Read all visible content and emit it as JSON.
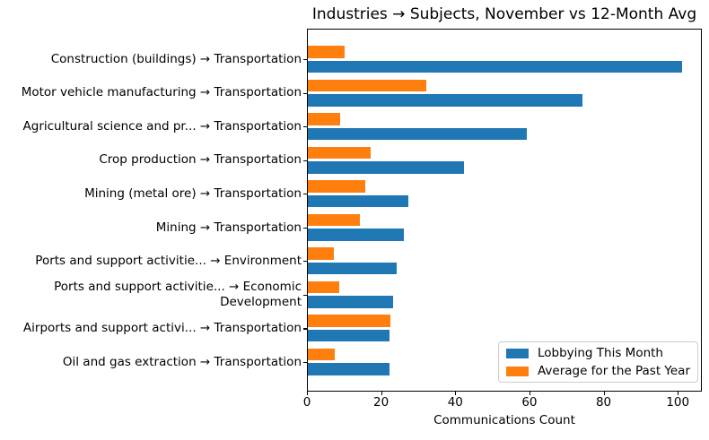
{
  "chart_data": {
    "type": "bar",
    "orientation": "horizontal",
    "title": "Industries → Subjects, November vs 12-Month Avg",
    "xlabel": "Communications Count",
    "ylabel": "",
    "xlim": [
      0,
      106
    ],
    "xticks": [
      0,
      20,
      40,
      60,
      80,
      100
    ],
    "grid": false,
    "legend_position": "lower right",
    "categories": [
      "Construction (buildings) → Transportation",
      "Motor vehicle manufacturing → Transportation",
      "Agricultural science and pr... → Transportation",
      "Crop production → Transportation",
      "Mining (metal ore) → Transportation",
      "Mining → Transportation",
      "Ports and support activitie... → Environment",
      "Ports and support activitie... → Economic\nDevelopment",
      "Airports and support activi... → Transportation",
      "Oil and gas extraction → Transportation"
    ],
    "series": [
      {
        "name": "Lobbying This Month",
        "color": "#1f77b4",
        "values": [
          101,
          74,
          59,
          42,
          27,
          26,
          24,
          23,
          22,
          22
        ]
      },
      {
        "name": "Average for the Past Year",
        "color": "#ff7f0e",
        "values": [
          10,
          32,
          8.6,
          17,
          15.5,
          14,
          7,
          8.5,
          22.3,
          7.2
        ]
      }
    ]
  }
}
